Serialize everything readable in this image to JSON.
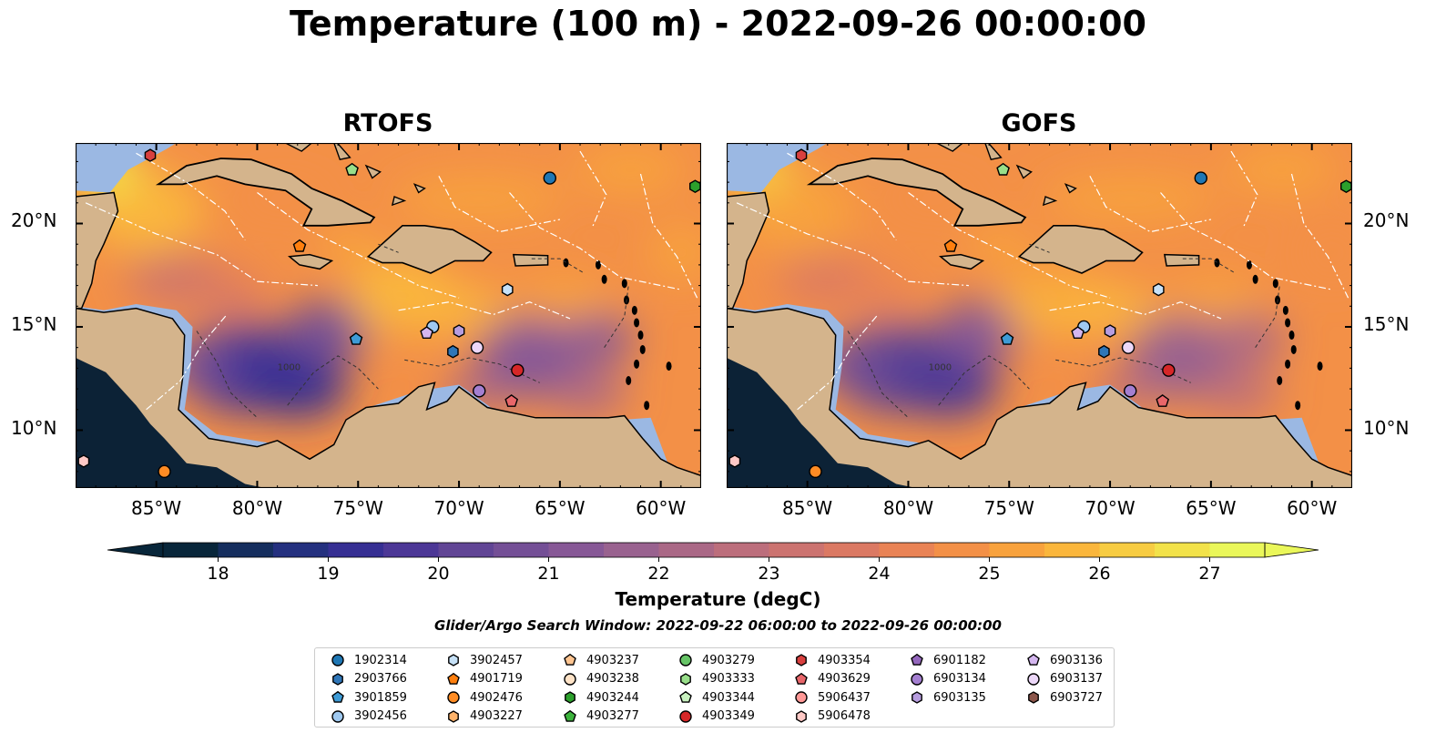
{
  "title": "Temperature (100 m) - 2022-09-26 00:00:00",
  "panels": [
    {
      "title": "RTOFS",
      "blob_scale": 1.0
    },
    {
      "title": "GOFS",
      "blob_scale": 0.8
    }
  ],
  "lon_ticks": [
    "85°W",
    "80°W",
    "75°W",
    "70°W",
    "65°W",
    "60°W"
  ],
  "lat_ticks": [
    "20°N",
    "15°N",
    "10°N"
  ],
  "map_extent": {
    "lon": [
      -89,
      -58
    ],
    "lat": [
      7.2,
      23.9
    ]
  },
  "colorbar": {
    "label": "Temperature (degC)",
    "ticks": [
      "18",
      "19",
      "20",
      "21",
      "22",
      "23",
      "24",
      "25",
      "26",
      "27"
    ],
    "range": [
      17.5,
      27.5
    ],
    "colors": [
      "#08263a",
      "#152e5e",
      "#24307f",
      "#362f93",
      "#4c3796",
      "#614595",
      "#744f96",
      "#875896",
      "#99628f",
      "#aa6886",
      "#bc6e7c",
      "#cc7370",
      "#db7963",
      "#e98355",
      "#f39047",
      "#f8a23d",
      "#fab63c",
      "#f7cc42",
      "#f2e24a",
      "#eaf75a"
    ]
  },
  "search_window": "Glider/Argo Search Window: 2022-09-22 06:00:00 to 2022-09-26 00:00:00",
  "legend": {
    "columns": [
      [
        {
          "id": "1902314",
          "marker": "circle",
          "color": "#1f77b4"
        },
        {
          "id": "2903766",
          "marker": "hexagon",
          "color": "#2f76b8"
        },
        {
          "id": "3901859",
          "marker": "pentagon",
          "color": "#3e9bd6"
        },
        {
          "id": "3902456",
          "marker": "circle",
          "color": "#9fc9f0"
        }
      ],
      [
        {
          "id": "3902457",
          "marker": "hexagon",
          "color": "#c6e1f7"
        },
        {
          "id": "4901719",
          "marker": "pentagon",
          "color": "#ff7f0e"
        },
        {
          "id": "4902476",
          "marker": "circle",
          "color": "#ff8c24"
        },
        {
          "id": "4903227",
          "marker": "hexagon",
          "color": "#ffb36b"
        }
      ],
      [
        {
          "id": "4903237",
          "marker": "pentagon",
          "color": "#ffc591"
        },
        {
          "id": "4903238",
          "marker": "circle",
          "color": "#ffe3c7"
        },
        {
          "id": "4903244",
          "marker": "hexagon",
          "color": "#2ca02c"
        },
        {
          "id": "4903277",
          "marker": "pentagon",
          "color": "#3cb33c"
        }
      ],
      [
        {
          "id": "4903279",
          "marker": "circle",
          "color": "#66c466"
        },
        {
          "id": "4903333",
          "marker": "hexagon",
          "color": "#98df8a"
        },
        {
          "id": "4903344",
          "marker": "pentagon",
          "color": "#c9f2c0"
        },
        {
          "id": "4903349",
          "marker": "circle",
          "color": "#d62728"
        }
      ],
      [
        {
          "id": "4903354",
          "marker": "hexagon",
          "color": "#d9403f"
        },
        {
          "id": "4903629",
          "marker": "pentagon",
          "color": "#e8666a"
        },
        {
          "id": "5906437",
          "marker": "circle",
          "color": "#ff9896"
        },
        {
          "id": "5906478",
          "marker": "hexagon",
          "color": "#ffc9c6"
        }
      ],
      [
        {
          "id": "6901182",
          "marker": "pentagon",
          "color": "#9467bd"
        },
        {
          "id": "6903134",
          "marker": "circle",
          "color": "#a47fd1"
        },
        {
          "id": "6903135",
          "marker": "hexagon",
          "color": "#b79ddf"
        }
      ],
      [
        {
          "id": "6903136",
          "marker": "pentagon",
          "color": "#d4b6ef"
        },
        {
          "id": "6903137",
          "marker": "circle",
          "color": "#ecd7f8"
        },
        {
          "id": "6903727",
          "marker": "hexagon",
          "color": "#8c564b"
        }
      ]
    ]
  },
  "floats": [
    {
      "lon": -85.3,
      "lat": 23.3,
      "marker": "hexagon",
      "color": "#d9403f"
    },
    {
      "lon": -75.3,
      "lat": 22.6,
      "marker": "pentagon",
      "color": "#98df8a"
    },
    {
      "lon": -65.5,
      "lat": 22.2,
      "marker": "circle",
      "color": "#1f77b4"
    },
    {
      "lon": -58.3,
      "lat": 21.8,
      "marker": "hexagon",
      "color": "#2ca02c"
    },
    {
      "lon": -77.9,
      "lat": 18.9,
      "marker": "pentagon",
      "color": "#ff7f0e"
    },
    {
      "lon": -67.6,
      "lat": 16.8,
      "marker": "hexagon",
      "color": "#c6e1f7"
    },
    {
      "lon": -75.1,
      "lat": 14.4,
      "marker": "pentagon",
      "color": "#3e9bd6"
    },
    {
      "lon": -71.3,
      "lat": 15.0,
      "marker": "circle",
      "color": "#9fc9f0"
    },
    {
      "lon": -71.6,
      "lat": 14.7,
      "marker": "pentagon",
      "color": "#d4b6ef"
    },
    {
      "lon": -70.0,
      "lat": 14.8,
      "marker": "hexagon",
      "color": "#b79ddf"
    },
    {
      "lon": -70.3,
      "lat": 13.8,
      "marker": "hexagon",
      "color": "#2f76b8"
    },
    {
      "lon": -69.1,
      "lat": 14.0,
      "marker": "circle",
      "color": "#ecd7f8"
    },
    {
      "lon": -69.0,
      "lat": 11.9,
      "marker": "circle",
      "color": "#a47fd1"
    },
    {
      "lon": -67.1,
      "lat": 12.9,
      "marker": "circle",
      "color": "#d62728"
    },
    {
      "lon": -67.4,
      "lat": 11.4,
      "marker": "pentagon",
      "color": "#e8666a"
    },
    {
      "lon": -88.6,
      "lat": 8.5,
      "marker": "hexagon",
      "color": "#ffc9c6"
    },
    {
      "lon": -84.6,
      "lat": 8.0,
      "marker": "circle",
      "color": "#ff8c24"
    }
  ],
  "dashed_contour_labels": [
    "1000"
  ]
}
